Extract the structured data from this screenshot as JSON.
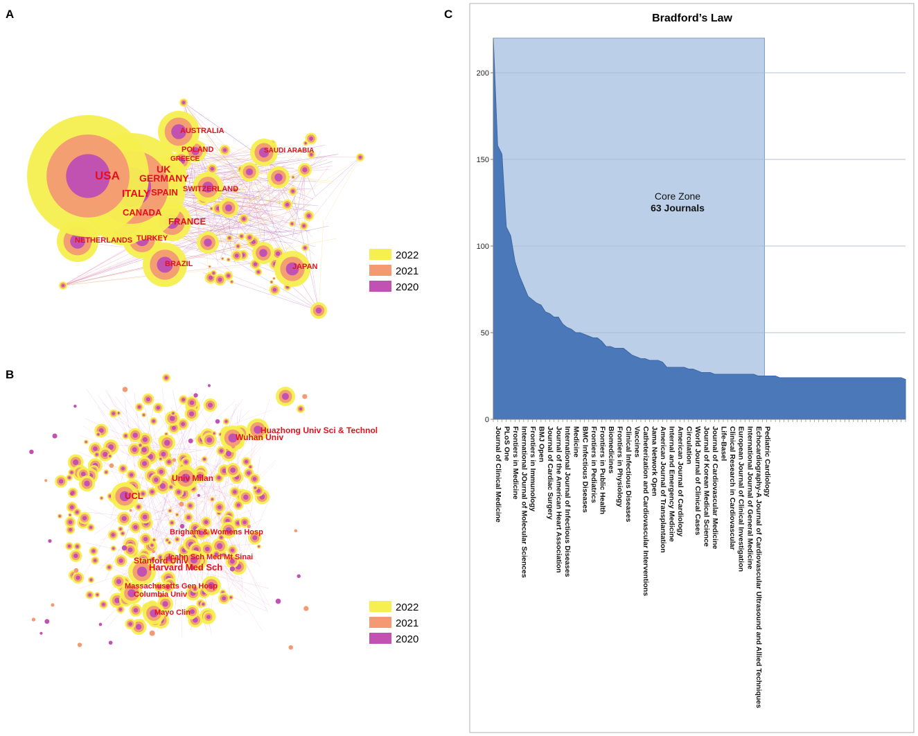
{
  "panels": {
    "a": {
      "letter": "A"
    },
    "b": {
      "letter": "B"
    },
    "c": {
      "letter": "C"
    }
  },
  "legend": [
    {
      "year": "2022",
      "color": "#f5ef4f"
    },
    {
      "year": "2021",
      "color": "#f39a73"
    },
    {
      "year": "2020",
      "color": "#c152b1"
    }
  ],
  "network_a": {
    "labels": [
      "USA",
      "UK",
      "GERMANY",
      "ITALY",
      "SPAIN",
      "CANADA",
      "AUSTRALIA",
      "POLAND",
      "GREECE",
      "SAUDI ARABIA",
      "SWITZERLAND",
      "FRANCE",
      "NETHERLANDS",
      "TURKEY",
      "BRAZIL",
      "JAPAN"
    ]
  },
  "network_b": {
    "labels": [
      "Huazhong Univ Sci & Technol",
      "Wuhan Univ",
      "Univ Milan",
      "UCL",
      "Brigham & Womens Hosp",
      "Icahn Sch Med Mt Sinai",
      "Stanford Univ",
      "Harvard Med Sch",
      "Massachusetts Gen Hosp",
      "Columbia Univ",
      "Mayo Clin"
    ]
  },
  "chart_data": {
    "type": "area",
    "title": "Bradford’s Law",
    "core_zone": {
      "line1": "Core Zone",
      "line2": "63 Journals",
      "count": 63
    },
    "ylim": [
      0,
      220
    ],
    "yticks": [
      0,
      50,
      100,
      150,
      200
    ],
    "total_points": 96,
    "values": [
      220,
      158,
      153,
      111,
      106,
      91,
      83,
      77,
      71,
      69,
      67,
      66,
      62,
      61,
      59,
      59,
      55,
      53,
      52,
      50,
      50,
      49,
      48,
      47,
      47,
      45,
      42,
      42,
      41,
      41,
      41,
      39,
      37,
      36,
      35,
      35,
      34,
      34,
      34,
      33,
      30,
      30,
      30,
      30,
      30,
      29,
      29,
      28,
      27,
      27,
      27,
      26,
      26,
      26,
      26,
      26,
      26,
      26,
      26,
      26,
      26,
      25,
      25,
      25,
      25,
      25,
      24,
      24,
      24,
      24,
      24,
      24,
      24,
      24,
      24,
      24,
      24,
      24,
      24,
      24,
      24,
      24,
      24,
      24,
      24,
      24,
      24,
      24,
      24,
      24,
      24,
      24,
      24,
      24,
      24,
      23
    ],
    "category_labels": [
      {
        "i": 0,
        "text": "Journal of Clinical Medicine"
      },
      {
        "i": 2,
        "text": "PLoS One"
      },
      {
        "i": 4,
        "text": "Frontiers in Medicine"
      },
      {
        "i": 6,
        "text": "International JOurnal of Molecular Sciences"
      },
      {
        "i": 8,
        "text": "Frontiers in Immunology"
      },
      {
        "i": 10,
        "text": "BMJ Open"
      },
      {
        "i": 12,
        "text": "Journal of Cardiac Surgery"
      },
      {
        "i": 14,
        "text": "Journal of the American Heart Association"
      },
      {
        "i": 16,
        "text": "International Journal of Infectious Diseases"
      },
      {
        "i": 18,
        "text": "Medicine"
      },
      {
        "i": 20,
        "text": "BMC Infectious Diseases"
      },
      {
        "i": 22,
        "text": "Frontiers in Pediatrics"
      },
      {
        "i": 24,
        "text": "Frontiers in Public Health"
      },
      {
        "i": 26,
        "text": "Biomedicines"
      },
      {
        "i": 28,
        "text": "Frontiers in Physiology"
      },
      {
        "i": 30,
        "text": "Clinical Infectious Diseases"
      },
      {
        "i": 32,
        "text": "Vaccines"
      },
      {
        "i": 34,
        "text": "Catheterization and Cardiovascular Interventions"
      },
      {
        "i": 36,
        "text": "Jama Network Open"
      },
      {
        "i": 38,
        "text": "American Journal of Transplantation"
      },
      {
        "i": 40,
        "text": "Internal and Emergency Medicine"
      },
      {
        "i": 42,
        "text": "American Journal of Cardiology"
      },
      {
        "i": 44,
        "text": "Circulation"
      },
      {
        "i": 46,
        "text": "World Journal of Clinical Cases"
      },
      {
        "i": 48,
        "text": "Journal of Korean Medical Science"
      },
      {
        "i": 50,
        "text": "Journal of Cardiovascular Medicine"
      },
      {
        "i": 52,
        "text": "Life-Basel"
      },
      {
        "i": 54,
        "text": "Clinical Research in Cardiovascular"
      },
      {
        "i": 56,
        "text": "European Journal of Clinical Investigation"
      },
      {
        "i": 58,
        "text": "International Journal of General Medicine"
      },
      {
        "i": 60,
        "text": "Echocardiography-A Journal of Cardiovascular Ultrasound and Allied Techniques"
      },
      {
        "i": 62,
        "text": "Pediatric Cardiology"
      }
    ],
    "colors": {
      "area": "#4a78b8",
      "core": "#bccfe8"
    }
  }
}
